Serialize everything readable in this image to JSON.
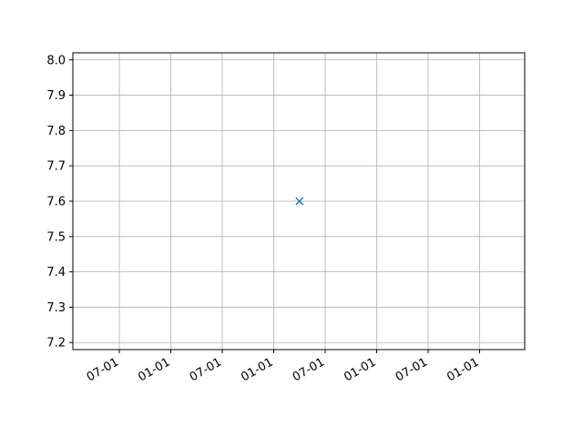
{
  "chart_data": {
    "type": "scatter",
    "title": "",
    "xlabel": "",
    "ylabel": "",
    "grid": true,
    "marker": "x",
    "color": "#1f77b4",
    "x_tick_labels": [
      "07-01",
      "01-01",
      "07-01",
      "01-01",
      "07-01",
      "01-01",
      "07-01",
      "01-01"
    ],
    "y_tick_labels": [
      "7.2",
      "7.3",
      "7.4",
      "7.5",
      "7.6",
      "7.7",
      "7.8",
      "7.9",
      "8.0"
    ],
    "ylim": [
      7.18,
      8.02
    ],
    "y_ticks": [
      7.2,
      7.3,
      7.4,
      7.5,
      7.6,
      7.7,
      7.8,
      7.9,
      8.0
    ],
    "points": [
      {
        "x_index": 3.5,
        "y": 7.6
      }
    ]
  }
}
